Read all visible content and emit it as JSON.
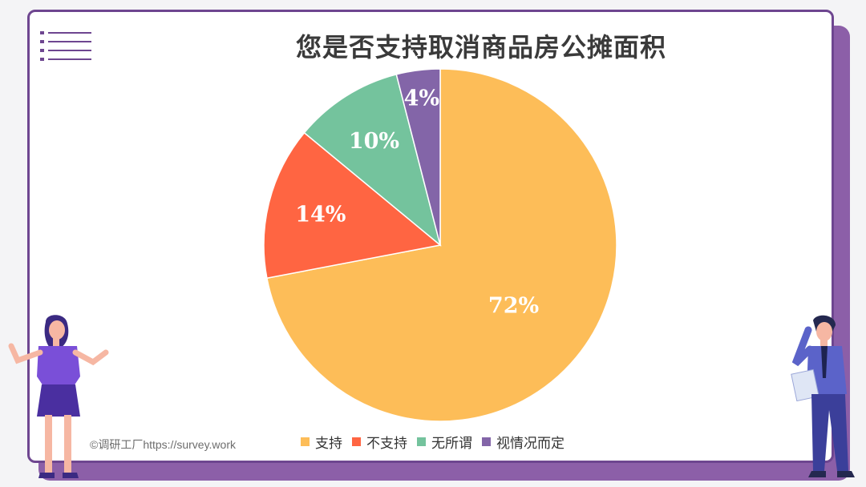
{
  "chart_data": {
    "type": "pie",
    "title": "您是否支持取消商品房公摊面积",
    "slices": [
      {
        "label": "支持",
        "value": 72,
        "display": "72%",
        "color": "#fdbd58"
      },
      {
        "label": "不支持",
        "value": 14,
        "display": "14%",
        "color": "#ff6542"
      },
      {
        "label": "无所谓",
        "value": 10,
        "display": "10%",
        "color": "#74c39d"
      },
      {
        "label": "视情况而定",
        "value": 4,
        "display": "4%",
        "color": "#8365a8"
      }
    ],
    "legend_position": "bottom"
  },
  "watermark": "©调研工厂https://survey.work",
  "colors": {
    "frame": "#6e4690",
    "accent": "#8c5fa8"
  },
  "icons": {
    "menu": "menu-lines-icon",
    "left_figure": "woman-presenting-illustration",
    "right_figure": "man-on-phone-illustration"
  }
}
